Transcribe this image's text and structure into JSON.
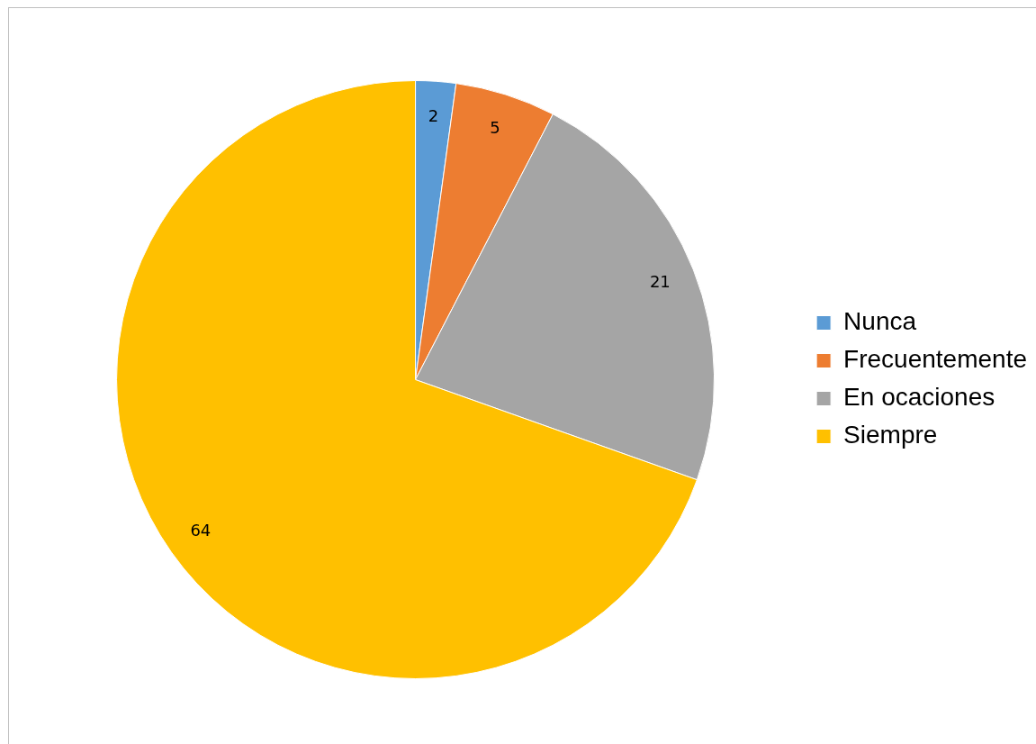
{
  "chart_data": {
    "type": "pie",
    "categories": [
      "Nunca",
      "Frecuentemente",
      "En ocaciones",
      "Siempre"
    ],
    "values": [
      2,
      5,
      21,
      64
    ],
    "colors": [
      "#5b9bd5",
      "#ed7d31",
      "#a5a5a5",
      "#ffc000"
    ],
    "data_labels": true,
    "legend": "right"
  }
}
